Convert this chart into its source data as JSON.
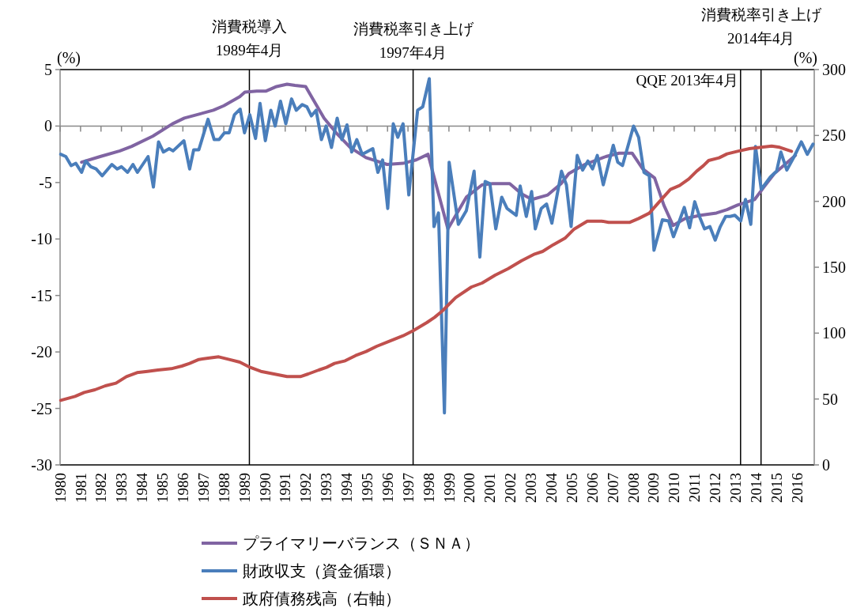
{
  "chart_data": {
    "type": "line",
    "ylabel": "(%)",
    "y2label": "(%)",
    "xlim": [
      1980,
      2016.85
    ],
    "xticks": [
      1980,
      1981,
      1982,
      1983,
      1984,
      1985,
      1986,
      1987,
      1988,
      1989,
      1990,
      1991,
      1992,
      1993,
      1994,
      1995,
      1996,
      1997,
      1998,
      1999,
      2000,
      2001,
      2002,
      2003,
      2004,
      2005,
      2006,
      2007,
      2008,
      2009,
      2010,
      2011,
      2012,
      2013,
      2014,
      2015,
      2016
    ],
    "ylim": [
      -30,
      5
    ],
    "yticks": [
      -30,
      -25,
      -20,
      -15,
      -10,
      -5,
      0,
      5
    ],
    "y2lim": [
      0,
      300
    ],
    "y2ticks": [
      0,
      50,
      100,
      150,
      200,
      250,
      300
    ],
    "legend": "bottom",
    "series": [
      {
        "name": "プライマリーバランス（ＳＮＡ）",
        "color": "#8064a2",
        "x": [
          1981.05,
          1981.96,
          1982.92,
          1983.5,
          1984.53,
          1985.49,
          1986.07,
          1987.49,
          1988.0,
          1988.78,
          1989.03,
          1989.61,
          1990.07,
          1990.58,
          1991.09,
          1991.48,
          1992.0,
          1992.38,
          1992.9,
          1993.54,
          1994.18,
          1994.95,
          1995.98,
          1996.76,
          1997.4,
          1997.98,
          1998.3,
          1998.95,
          1999.85,
          2000.62,
          2001.13,
          2001.97,
          2002.55,
          2003.06,
          2003.83,
          2004.48,
          2004.86,
          2005.64,
          2006.67,
          2007.31,
          2007.95,
          2008.47,
          2009.05,
          2009.5,
          2009.95,
          2010.53,
          2011.3,
          2012.07,
          2012.59,
          2013.1,
          2013.94,
          2014.39,
          2014.9,
          2015.42,
          2015.93
        ],
        "values": [
          -3.2,
          -2.7,
          -2.2,
          -1.8,
          -0.9,
          0.2,
          0.7,
          1.4,
          1.8,
          2.6,
          3.0,
          3.1,
          3.1,
          3.5,
          3.7,
          3.6,
          3.5,
          2.3,
          0.7,
          -0.7,
          -1.9,
          -2.8,
          -3.4,
          -3.3,
          -3.0,
          -2.5,
          -4.7,
          -9.1,
          -6.3,
          -5.2,
          -5.1,
          -5.1,
          -6.0,
          -6.5,
          -6.1,
          -5.1,
          -4.2,
          -3.4,
          -2.7,
          -2.4,
          -2.4,
          -3.8,
          -4.6,
          -7.0,
          -8.8,
          -8.2,
          -7.9,
          -7.7,
          -7.4,
          -7.0,
          -6.5,
          -5.4,
          -4.2,
          -3.4,
          -2.6
        ]
      },
      {
        "name": "財政収支（資金循環）",
        "color": "#4a7ebb",
        "x": [
          1980.03,
          1980.28,
          1980.54,
          1980.77,
          1981.05,
          1981.25,
          1981.5,
          1981.76,
          1982.06,
          1982.53,
          1982.79,
          1983.0,
          1983.3,
          1983.56,
          1983.78,
          1984.3,
          1984.56,
          1984.81,
          1985.05,
          1985.33,
          1985.52,
          1986.05,
          1986.33,
          1986.53,
          1986.78,
          1987.23,
          1987.53,
          1987.77,
          1988.03,
          1988.26,
          1988.52,
          1988.8,
          1989.01,
          1989.27,
          1989.55,
          1989.77,
          1990.03,
          1990.3,
          1990.51,
          1990.77,
          1991.03,
          1991.31,
          1991.54,
          1991.83,
          1992.06,
          1992.28,
          1992.51,
          1992.77,
          1993.0,
          1993.26,
          1993.54,
          1993.77,
          1994.02,
          1994.25,
          1994.5,
          1994.76,
          1995.28,
          1995.53,
          1995.76,
          1996.01,
          1996.28,
          1996.5,
          1996.76,
          1997.04,
          1997.47,
          1997.72,
          1998.04,
          1998.27,
          1998.49,
          1998.78,
          1999.01,
          1999.46,
          1999.85,
          2000.23,
          2000.51,
          2000.77,
          2001.0,
          2001.29,
          2001.58,
          2001.84,
          2002.29,
          2002.48,
          2002.78,
          2003.04,
          2003.22,
          2003.51,
          2003.77,
          2004.03,
          2004.5,
          2004.74,
          2004.97,
          2005.27,
          2005.53,
          2005.79,
          2006.02,
          2006.25,
          2006.54,
          2007.03,
          2007.25,
          2007.48,
          2008.02,
          2008.27,
          2008.53,
          2008.79,
          2009.02,
          2009.43,
          2009.73,
          2009.97,
          2010.2,
          2010.5,
          2010.76,
          2011.01,
          2011.24,
          2011.49,
          2011.75,
          2012.01,
          2012.26,
          2012.52,
          2012.74,
          2012.97,
          2013.26,
          2013.49,
          2013.75,
          2013.98,
          2014.26,
          2014.71,
          2015.01,
          2015.22,
          2015.51,
          2015.87,
          2016.22,
          2016.51,
          2016.79
        ],
        "values": [
          -2.5,
          -2.7,
          -3.5,
          -3.3,
          -4.1,
          -3.1,
          -3.6,
          -3.8,
          -4.4,
          -3.4,
          -3.8,
          -3.6,
          -4.1,
          -3.4,
          -4.1,
          -2.7,
          -5.4,
          -1.4,
          -2.3,
          -2.0,
          -2.2,
          -1.3,
          -3.8,
          -2.1,
          -2.1,
          0.6,
          -1.2,
          -1.2,
          -0.6,
          -0.6,
          1.0,
          1.5,
          -0.6,
          1.0,
          -1.1,
          2.0,
          -1.3,
          1.4,
          0.0,
          2.2,
          0.2,
          2.4,
          1.4,
          1.9,
          1.7,
          0.9,
          1.4,
          -1.2,
          0.0,
          -1.9,
          0.7,
          -1.2,
          0.1,
          -2.3,
          -1.2,
          -2.5,
          -2.0,
          -4.1,
          -3.0,
          -7.3,
          0.2,
          -1.0,
          0.2,
          -6.1,
          1.4,
          1.7,
          4.2,
          -8.9,
          -7.7,
          -25.4,
          -3.2,
          -8.7,
          -7.5,
          -4.0,
          -11.6,
          -4.9,
          -5.1,
          -9.1,
          -6.3,
          -7.3,
          -7.9,
          -5.3,
          -8.0,
          -5.8,
          -9.1,
          -7.3,
          -6.9,
          -8.6,
          -4.0,
          -5.2,
          -8.9,
          -2.6,
          -3.9,
          -3.1,
          -3.8,
          -2.6,
          -5.2,
          -1.7,
          -3.2,
          -3.5,
          0.0,
          -1.0,
          -4.1,
          -4.4,
          -11.0,
          -8.3,
          -8.4,
          -9.8,
          -8.7,
          -7.2,
          -9.0,
          -6.7,
          -8.0,
          -9.1,
          -8.9,
          -10.1,
          -8.9,
          -8.0,
          -8.0,
          -7.9,
          -8.4,
          -6.5,
          -8.7,
          -1.8,
          -5.6,
          -4.5,
          -4.0,
          -2.3,
          -3.9,
          -2.7,
          -1.4,
          -2.5,
          -1.6
        ]
      },
      {
        "name": "政府債務残高（右軸）",
        "color": "#c0504d",
        "axis": "y2",
        "x": [
          1980.03,
          1980.73,
          1981.18,
          1981.7,
          1982.21,
          1982.73,
          1983.24,
          1983.76,
          1984.27,
          1984.78,
          1985.43,
          1985.95,
          1986.33,
          1986.78,
          1987.23,
          1987.75,
          1988.26,
          1988.78,
          1989.29,
          1989.81,
          1990.45,
          1991.09,
          1991.74,
          1992.12,
          1992.64,
          1993.02,
          1993.41,
          1993.93,
          1994.44,
          1994.95,
          1995.47,
          1996.11,
          1996.76,
          1997.27,
          1997.92,
          1998.3,
          1998.69,
          1999.33,
          2000.1,
          2000.62,
          2001.26,
          2001.9,
          2002.55,
          2003.19,
          2003.58,
          2004.09,
          2004.67,
          2005.12,
          2005.76,
          2006.47,
          2006.8,
          2007.82,
          2008.27,
          2008.79,
          2009.24,
          2009.82,
          2010.27,
          2010.72,
          2011.11,
          2011.43,
          2011.69,
          2012.2,
          2012.59,
          2013.1,
          2013.68,
          2014.26,
          2014.77,
          2015.16,
          2015.74
        ],
        "values": [
          49,
          52,
          55,
          57,
          60,
          62,
          67,
          70,
          71,
          72,
          73,
          75,
          77,
          80,
          81,
          82,
          80,
          78,
          74,
          71,
          69,
          67,
          67,
          69,
          72,
          74,
          77,
          79,
          83,
          86,
          90,
          94,
          98,
          102,
          108,
          112,
          117,
          127,
          135,
          138,
          144,
          149,
          155,
          160,
          162,
          167,
          172,
          179,
          185,
          185,
          184,
          184,
          187,
          191,
          199,
          209,
          212,
          217,
          223,
          227,
          231,
          233,
          236,
          238,
          240,
          241,
          242,
          241,
          238
        ]
      }
    ],
    "ref_lines": [
      {
        "axis": "x",
        "value": 1989.25,
        "label": "消費税導入\n1989年4月",
        "color": "#000000"
      },
      {
        "axis": "x",
        "value": 1997.25,
        "label": "消費税率引き上げ\n1997年4月",
        "color": "#000000"
      },
      {
        "axis": "x",
        "value": 2013.25,
        "label": "QQE 2013年4月",
        "color": "#000000"
      },
      {
        "axis": "x",
        "value": 2014.25,
        "label": "消費税率引き上げ\n2014年4月",
        "color": "#000000"
      }
    ]
  }
}
